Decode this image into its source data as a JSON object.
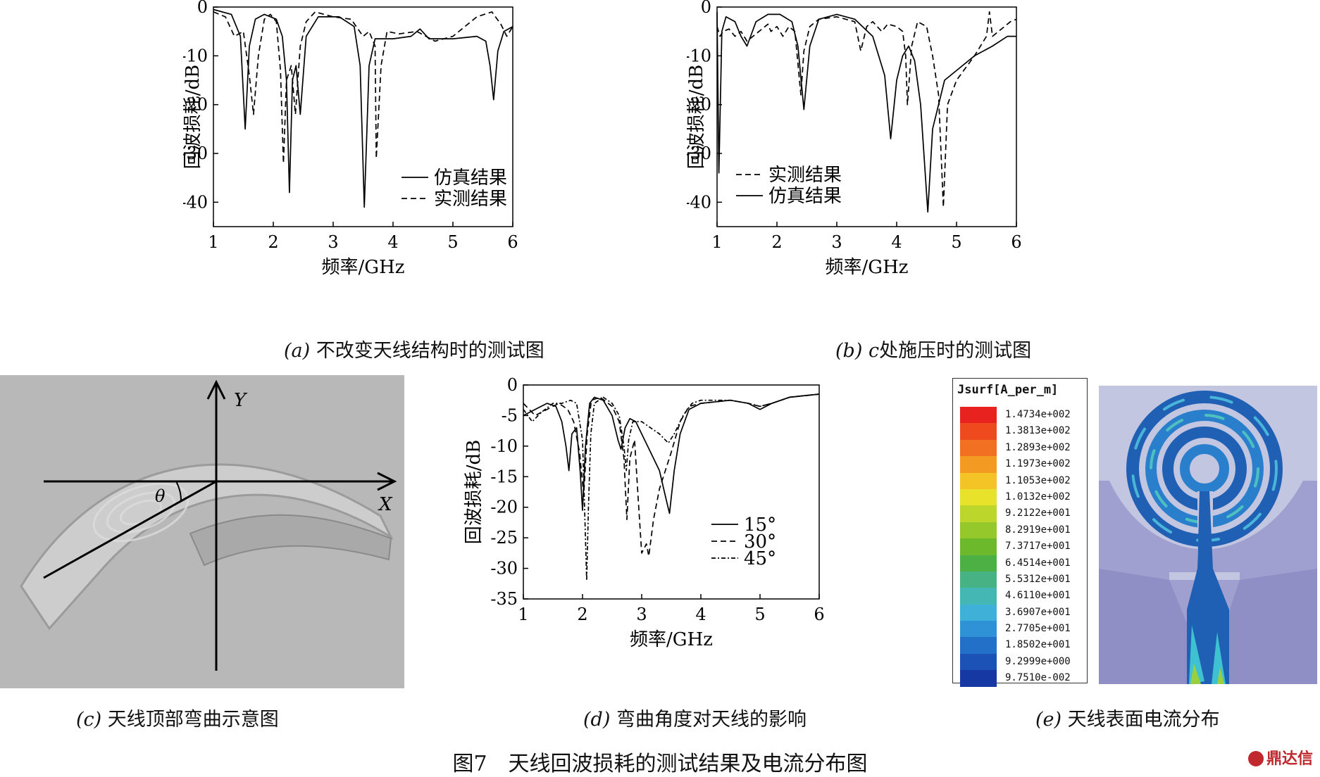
{
  "chart_data": [
    {
      "id": "a",
      "type": "line",
      "xlabel": "频率/GHz",
      "ylabel": "回波损耗/dB",
      "xlim": [
        1,
        6
      ],
      "ylim": [
        -45,
        0
      ],
      "xticks": [
        "1",
        "2",
        "3",
        "4",
        "5",
        "6"
      ],
      "yticks": [
        "0",
        "-10",
        "-20",
        "-30",
        "-40"
      ],
      "legend": {
        "placement": "bottom-right"
      },
      "series": [
        {
          "name": "仿真结果",
          "dash": "solid",
          "points": [
            [
              1,
              -0.5
            ],
            [
              1.3,
              -1.5
            ],
            [
              1.45,
              -6
            ],
            [
              1.53,
              -25
            ],
            [
              1.6,
              -8
            ],
            [
              1.7,
              -2.5
            ],
            [
              1.85,
              -1.5
            ],
            [
              2.05,
              -2.5
            ],
            [
              2.15,
              -6
            ],
            [
              2.22,
              -15
            ],
            [
              2.27,
              -38
            ],
            [
              2.32,
              -15
            ],
            [
              2.38,
              -12
            ],
            [
              2.45,
              -22
            ],
            [
              2.55,
              -6
            ],
            [
              2.75,
              -2
            ],
            [
              3.1,
              -2
            ],
            [
              3.35,
              -4
            ],
            [
              3.45,
              -12
            ],
            [
              3.52,
              -41
            ],
            [
              3.6,
              -12
            ],
            [
              3.7,
              -6.5
            ],
            [
              4.0,
              -6.5
            ],
            [
              4.3,
              -6
            ],
            [
              4.45,
              -4.5
            ],
            [
              4.6,
              -6.5
            ],
            [
              5.0,
              -6.5
            ],
            [
              5.4,
              -6
            ],
            [
              5.55,
              -7
            ],
            [
              5.62,
              -12
            ],
            [
              5.68,
              -19
            ],
            [
              5.75,
              -9
            ],
            [
              5.85,
              -5
            ],
            [
              6,
              -4
            ]
          ]
        },
        {
          "name": "实测结果",
          "dash": "dashed",
          "points": [
            [
              1,
              -1
            ],
            [
              1.2,
              -2
            ],
            [
              1.35,
              -6
            ],
            [
              1.5,
              -5
            ],
            [
              1.6,
              -14
            ],
            [
              1.67,
              -22
            ],
            [
              1.75,
              -10
            ],
            [
              1.85,
              -2.5
            ],
            [
              1.95,
              -1.5
            ],
            [
              2.05,
              -3
            ],
            [
              2.12,
              -13
            ],
            [
              2.17,
              -32
            ],
            [
              2.22,
              -15
            ],
            [
              2.3,
              -12
            ],
            [
              2.37,
              -22
            ],
            [
              2.45,
              -8
            ],
            [
              2.55,
              -3
            ],
            [
              2.7,
              -1
            ],
            [
              3.0,
              -2
            ],
            [
              3.3,
              -2.5
            ],
            [
              3.5,
              -6
            ],
            [
              3.6,
              -5
            ],
            [
              3.7,
              -8
            ],
            [
              3.72,
              -31
            ],
            [
              3.8,
              -12
            ],
            [
              3.9,
              -5
            ],
            [
              4.1,
              -5.5
            ],
            [
              4.4,
              -5
            ],
            [
              4.7,
              -7
            ],
            [
              5.0,
              -6
            ],
            [
              5.4,
              -2
            ],
            [
              5.65,
              -1
            ],
            [
              5.8,
              -3.5
            ],
            [
              5.9,
              -6
            ],
            [
              6,
              -4
            ]
          ]
        }
      ]
    },
    {
      "id": "b",
      "type": "line",
      "xlabel": "频率/GHz",
      "ylabel": "回波损耗/dB",
      "xlim": [
        1,
        6
      ],
      "ylim": [
        -45,
        0
      ],
      "xticks": [
        "1",
        "2",
        "3",
        "4",
        "5",
        "6"
      ],
      "yticks": [
        "0",
        "-10",
        "-20",
        "-30",
        "-40"
      ],
      "legend": {
        "placement": "bottom-left"
      },
      "series": [
        {
          "name": "实测结果",
          "dash": "dashed",
          "points": [
            [
              1,
              -4
            ],
            [
              1.05,
              -6
            ],
            [
              1.1,
              -5
            ],
            [
              1.2,
              -4.5
            ],
            [
              1.3,
              -6
            ],
            [
              1.4,
              -5
            ],
            [
              1.5,
              -7
            ],
            [
              1.7,
              -5
            ],
            [
              1.85,
              -3.5
            ],
            [
              1.9,
              -5
            ],
            [
              2.0,
              -4
            ],
            [
              2.1,
              -6
            ],
            [
              2.2,
              -4
            ],
            [
              2.3,
              -5
            ],
            [
              2.4,
              -18
            ],
            [
              2.45,
              -9
            ],
            [
              2.55,
              -4
            ],
            [
              2.7,
              -2.5
            ],
            [
              3.0,
              -2
            ],
            [
              3.3,
              -3
            ],
            [
              3.4,
              -9
            ],
            [
              3.5,
              -4
            ],
            [
              3.6,
              -3
            ],
            [
              3.75,
              -5
            ],
            [
              3.85,
              -3.5
            ],
            [
              4.0,
              -4
            ],
            [
              4.1,
              -5
            ],
            [
              4.15,
              -10
            ],
            [
              4.18,
              -20
            ],
            [
              4.25,
              -8
            ],
            [
              4.35,
              -3
            ],
            [
              4.5,
              -4
            ],
            [
              4.6,
              -10
            ],
            [
              4.7,
              -18
            ],
            [
              4.78,
              -41
            ],
            [
              4.85,
              -20
            ],
            [
              5.0,
              -15
            ],
            [
              5.3,
              -10
            ],
            [
              5.5,
              -6
            ],
            [
              5.55,
              -1
            ],
            [
              5.6,
              -6
            ],
            [
              5.7,
              -5
            ],
            [
              5.9,
              -3
            ],
            [
              6,
              -2.5
            ]
          ]
        },
        {
          "name": "仿真结果",
          "dash": "solid",
          "points": [
            [
              1,
              -1
            ],
            [
              1.03,
              -34
            ],
            [
              1.08,
              -5
            ],
            [
              1.15,
              -2
            ],
            [
              1.3,
              -3
            ],
            [
              1.4,
              -6
            ],
            [
              1.5,
              -8
            ],
            [
              1.65,
              -3
            ],
            [
              1.85,
              -1.5
            ],
            [
              2.05,
              -1.5
            ],
            [
              2.25,
              -3
            ],
            [
              2.35,
              -8
            ],
            [
              2.45,
              -21
            ],
            [
              2.55,
              -8
            ],
            [
              2.7,
              -2.5
            ],
            [
              3.0,
              -1.5
            ],
            [
              3.3,
              -2.5
            ],
            [
              3.6,
              -6
            ],
            [
              3.8,
              -14
            ],
            [
              3.9,
              -27
            ],
            [
              4.0,
              -15
            ],
            [
              4.1,
              -10
            ],
            [
              4.2,
              -8
            ],
            [
              4.3,
              -11
            ],
            [
              4.4,
              -20
            ],
            [
              4.52,
              -42
            ],
            [
              4.6,
              -25
            ],
            [
              4.8,
              -15
            ],
            [
              5.0,
              -13
            ],
            [
              5.3,
              -10
            ],
            [
              5.6,
              -8
            ],
            [
              5.85,
              -6
            ],
            [
              6,
              -6
            ]
          ]
        }
      ]
    },
    {
      "id": "d",
      "type": "line",
      "xlabel": "频率/GHz",
      "ylabel": "回波损耗/dB",
      "xlim": [
        1,
        6
      ],
      "ylim": [
        -35,
        0
      ],
      "xticks": [
        "1",
        "2",
        "3",
        "4",
        "5",
        "6"
      ],
      "yticks": [
        "0",
        "-5",
        "-10",
        "-15",
        "-20",
        "-25",
        "-30",
        "-35"
      ],
      "legend": {
        "placement": "bottom-right"
      },
      "series": [
        {
          "name": "15°",
          "dash": "solid",
          "points": [
            [
              1,
              -5
            ],
            [
              1.2,
              -4
            ],
            [
              1.4,
              -3
            ],
            [
              1.55,
              -3.5
            ],
            [
              1.65,
              -6
            ],
            [
              1.72,
              -10
            ],
            [
              1.77,
              -14
            ],
            [
              1.82,
              -8
            ],
            [
              1.9,
              -7
            ],
            [
              1.96,
              -14
            ],
            [
              2.0,
              -20.5
            ],
            [
              2.05,
              -10
            ],
            [
              2.12,
              -3
            ],
            [
              2.2,
              -2
            ],
            [
              2.35,
              -2.5
            ],
            [
              2.5,
              -5
            ],
            [
              2.6,
              -9
            ],
            [
              2.65,
              -10.5
            ],
            [
              2.72,
              -7
            ],
            [
              2.8,
              -5.5
            ],
            [
              2.9,
              -6
            ],
            [
              3.0,
              -8
            ],
            [
              3.15,
              -11
            ],
            [
              3.3,
              -14
            ],
            [
              3.42,
              -19
            ],
            [
              3.47,
              -21
            ],
            [
              3.55,
              -14
            ],
            [
              3.65,
              -8
            ],
            [
              3.8,
              -4
            ],
            [
              4.0,
              -3
            ],
            [
              4.5,
              -2.5
            ],
            [
              4.8,
              -3
            ],
            [
              5.0,
              -4
            ],
            [
              5.2,
              -3
            ],
            [
              5.5,
              -2
            ],
            [
              6,
              -1.5
            ]
          ]
        },
        {
          "name": "30°",
          "dash": "dashed",
          "points": [
            [
              1,
              -3
            ],
            [
              1.2,
              -5
            ],
            [
              1.4,
              -4
            ],
            [
              1.6,
              -3
            ],
            [
              1.75,
              -4
            ],
            [
              1.85,
              -6
            ],
            [
              1.95,
              -11
            ],
            [
              2.02,
              -18
            ],
            [
              2.08,
              -8
            ],
            [
              2.15,
              -2.5
            ],
            [
              2.3,
              -2
            ],
            [
              2.5,
              -3.5
            ],
            [
              2.62,
              -6
            ],
            [
              2.7,
              -12
            ],
            [
              2.75,
              -22
            ],
            [
              2.8,
              -12
            ],
            [
              2.88,
              -9
            ],
            [
              2.95,
              -20
            ],
            [
              3.0,
              -27.5
            ],
            [
              3.08,
              -26
            ],
            [
              3.12,
              -28
            ],
            [
              3.2,
              -22
            ],
            [
              3.3,
              -17
            ],
            [
              3.4,
              -14
            ],
            [
              3.5,
              -11
            ],
            [
              3.65,
              -6
            ],
            [
              3.8,
              -3.5
            ],
            [
              4.0,
              -3
            ],
            [
              4.5,
              -2.5
            ],
            [
              4.8,
              -3
            ],
            [
              5.0,
              -3.5
            ],
            [
              5.2,
              -3
            ],
            [
              5.5,
              -2
            ],
            [
              6,
              -1.5
            ]
          ]
        },
        {
          "name": "45°",
          "dash": "dashdot",
          "points": [
            [
              1,
              -4
            ],
            [
              1.15,
              -6
            ],
            [
              1.3,
              -4.5
            ],
            [
              1.5,
              -3
            ],
            [
              1.65,
              -3
            ],
            [
              1.8,
              -2.5
            ],
            [
              1.9,
              -3
            ],
            [
              2.0,
              -9
            ],
            [
              2.04,
              -22
            ],
            [
              2.07,
              -32
            ],
            [
              2.1,
              -20
            ],
            [
              2.14,
              -8
            ],
            [
              2.2,
              -3
            ],
            [
              2.35,
              -2
            ],
            [
              2.5,
              -3
            ],
            [
              2.62,
              -5
            ],
            [
              2.7,
              -10
            ],
            [
              2.74,
              -14
            ],
            [
              2.78,
              -9
            ],
            [
              2.85,
              -6
            ],
            [
              3.0,
              -6
            ],
            [
              3.15,
              -7
            ],
            [
              3.3,
              -8
            ],
            [
              3.45,
              -9.5
            ],
            [
              3.55,
              -8
            ],
            [
              3.7,
              -5
            ],
            [
              3.85,
              -3
            ],
            [
              4.0,
              -2.5
            ],
            [
              4.5,
              -2.5
            ],
            [
              4.8,
              -3
            ],
            [
              5.0,
              -3.5
            ],
            [
              5.2,
              -3
            ],
            [
              5.5,
              -2
            ],
            [
              6,
              -1.5
            ]
          ]
        }
      ]
    }
  ],
  "captions": {
    "a_label": "(a)",
    "a_text": " 不改变天线结构时的测试图",
    "b_label": "(b)",
    "b_var": "c",
    "b_text": "处施压时的测试图",
    "c_label": "(c)",
    "c_text": " 天线顶部弯曲示意图",
    "d_label": "(d)",
    "d_text": " 弯曲角度对天线的影响",
    "e_label": "(e)",
    "e_text": " 天线表面电流分布",
    "figure": "图7　天线回波损耗的测试结果及电流分布图"
  },
  "photo": {
    "y_axis_label": "Y",
    "x_axis_label": "X",
    "angle_label": "θ",
    "background_color": "#b8b8b8"
  },
  "current_legend": {
    "title": "Jsurf[A_per_m]",
    "values": [
      "1.4734e+002",
      "1.3813e+002",
      "1.2893e+002",
      "1.1973e+002",
      "1.1053e+002",
      "1.0132e+002",
      "9.2122e+001",
      "8.2919e+001",
      "7.3717e+001",
      "6.4514e+001",
      "5.5312e+001",
      "4.6110e+001",
      "3.6907e+001",
      "2.7705e+001",
      "1.8502e+001",
      "9.2999e+000",
      "9.7510e-002"
    ],
    "colors": [
      "#e8221e",
      "#ee4a1e",
      "#f27021",
      "#f39a22",
      "#f4c426",
      "#e8e22a",
      "#bcd62c",
      "#95c82b",
      "#6cba2c",
      "#4cb045",
      "#47b283",
      "#44b6b4",
      "#3fb0d8",
      "#2f92d6",
      "#2370c8",
      "#1c52b6",
      "#1638a2"
    ]
  },
  "watermark": "鼎达信"
}
